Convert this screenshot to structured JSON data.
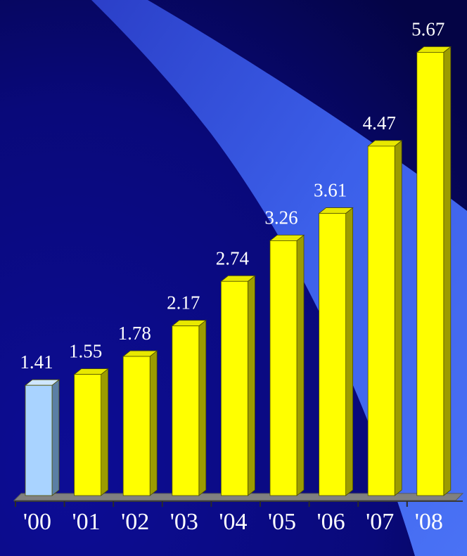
{
  "colors": {
    "bg_dark": "#06064f",
    "bg_mid": "#0c0c8a",
    "beam": "#3d63ea",
    "bar_front": "#ffff00",
    "bar_side": "#9c9c00",
    "bar_top": "#e8e800",
    "first_front": "#a9d3ff",
    "first_side": "#5b7fa5",
    "first_top": "#cfe6ff",
    "floor": "#808080",
    "text": "#ffffff"
  },
  "chart_data": {
    "type": "bar",
    "categories": [
      "'00",
      "'01",
      "'02",
      "'03",
      "'04",
      "'05",
      "'06",
      "'07",
      "'08"
    ],
    "values": [
      1.41,
      1.55,
      1.78,
      2.17,
      2.74,
      3.26,
      3.61,
      4.47,
      5.67
    ],
    "value_labels": [
      "1.41",
      "1.55",
      "1.78",
      "2.17",
      "2.74",
      "3.26",
      "3.61",
      "4.47",
      "5.67"
    ],
    "ylim": [
      0,
      5.8
    ],
    "grid": false,
    "legend": "none",
    "style": "3d"
  }
}
